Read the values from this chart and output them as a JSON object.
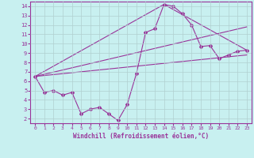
{
  "xlabel": "Windchill (Refroidissement éolien,°C)",
  "background_color": "#c8f0f0",
  "line_color": "#993399",
  "xlim": [
    -0.5,
    23.5
  ],
  "ylim": [
    1.5,
    14.5
  ],
  "xticks": [
    0,
    1,
    2,
    3,
    4,
    5,
    6,
    7,
    8,
    9,
    10,
    11,
    12,
    13,
    14,
    15,
    16,
    17,
    18,
    19,
    20,
    21,
    22,
    23
  ],
  "yticks": [
    2,
    3,
    4,
    5,
    6,
    7,
    8,
    9,
    10,
    11,
    12,
    13,
    14
  ],
  "grid_color": "#b0d0d0",
  "main_x": [
    0,
    1,
    2,
    3,
    4,
    5,
    6,
    7,
    8,
    9,
    10,
    11,
    12,
    13,
    14,
    15,
    16,
    17,
    18,
    19,
    20,
    21,
    22,
    23
  ],
  "main_y": [
    6.5,
    4.8,
    5.0,
    4.5,
    4.8,
    2.5,
    3.0,
    3.2,
    2.5,
    1.8,
    3.5,
    6.8,
    11.2,
    11.6,
    14.2,
    14.0,
    13.2,
    12.0,
    9.7,
    9.8,
    8.4,
    8.8,
    9.2,
    9.3
  ],
  "line1_x": [
    0,
    23
  ],
  "line1_y": [
    6.5,
    8.8
  ],
  "line2_x": [
    0,
    23
  ],
  "line2_y": [
    6.5,
    11.8
  ],
  "line3_x": [
    0,
    14,
    23
  ],
  "line3_y": [
    6.5,
    14.2,
    9.3
  ]
}
